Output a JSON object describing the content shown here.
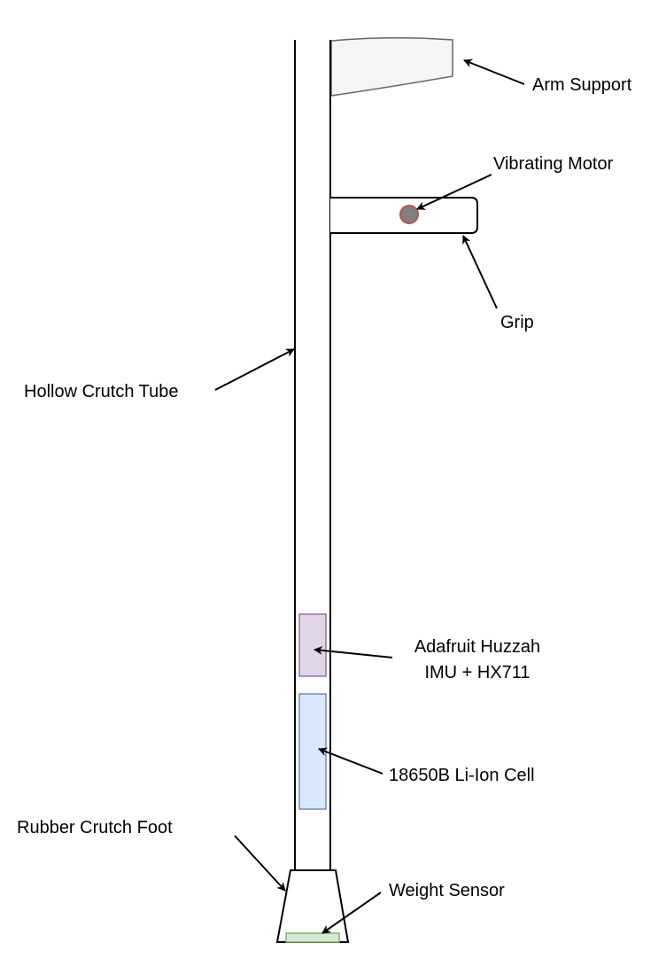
{
  "labels": {
    "arm_support": "Arm Support",
    "vibrating_motor": "Vibrating Motor",
    "grip": "Grip",
    "hollow_tube": "Hollow Crutch Tube",
    "huzzah_line1": "Adafruit Huzzah",
    "huzzah_line2": "IMU + HX711",
    "battery": "18650B Li-Ion Cell",
    "rubber_foot": "Rubber Crutch Foot",
    "weight_sensor": "Weight Sensor"
  },
  "colors": {
    "line": "#000000",
    "arm_support_fill": "#f5f5f5",
    "arm_support_stroke": "#666666",
    "motor_fill": "#808080",
    "motor_stroke": "#b85450",
    "huzzah_fill": "#e1d5e7",
    "huzzah_stroke": "#9673a6",
    "battery_fill": "#dae8fc",
    "battery_stroke": "#6c8ebf",
    "sensor_fill": "#d5e8d4",
    "sensor_stroke": "#82b366"
  }
}
